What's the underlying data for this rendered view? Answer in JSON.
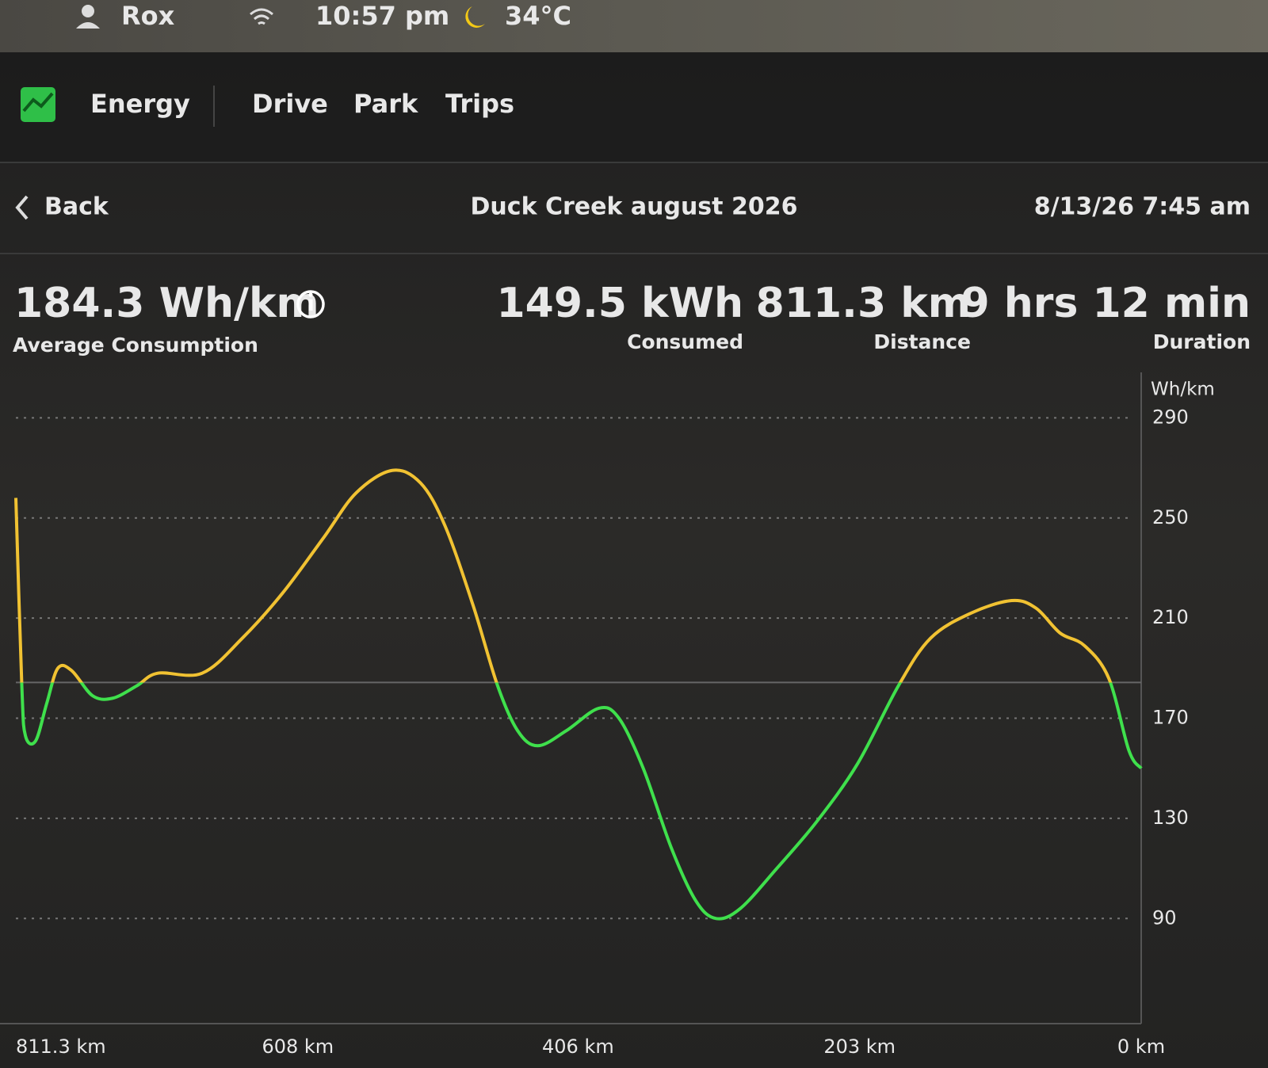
{
  "status_bar": {
    "user": "Rox",
    "time": "10:57 pm",
    "temperature": "34°C"
  },
  "nav": {
    "tabs": [
      "Energy",
      "Drive",
      "Park",
      "Trips"
    ]
  },
  "header": {
    "back": "Back",
    "title": "Duck Creek august 2026",
    "date": "8/13/26 7:45 am"
  },
  "stats": [
    {
      "value": "184.3 Wh/km",
      "label": "Average Consumption"
    },
    {
      "value": "149.5 kWh",
      "label": "Consumed"
    },
    {
      "value": "811.3 km",
      "label": "Distance"
    },
    {
      "value": "9 hrs 12 min",
      "label": "Duration"
    }
  ],
  "chart_data": {
    "type": "line",
    "y_unit": "Wh/km",
    "x": [
      811.3,
      807,
      804.4,
      797,
      789,
      781,
      771,
      756,
      741.5,
      724,
      709,
      677,
      648,
      619,
      589.6,
      566,
      540,
      519.6,
      502,
      481.6,
      464,
      449.5,
      435,
      414.5,
      391,
      376.5,
      359,
      338.6,
      321,
      306.5,
      289,
      262.7,
      233.5,
      204.3,
      175,
      151.8,
      122.6,
      93.4,
      75.9,
      58.4,
      40.9,
      23.4,
      8.8,
      0
    ],
    "series": [
      {
        "values": [
          258,
          183,
          163,
          161,
          176,
          190,
          189,
          179,
          178,
          183,
          188,
          188,
          202,
          220,
          242,
          260,
          269,
          264,
          247,
          215,
          183,
          165,
          159,
          165,
          174,
          170,
          150,
          118,
          97,
          90,
          94,
          110,
          129,
          152,
          183,
          202,
          212,
          217,
          214,
          204,
          199,
          186,
          157,
          150
        ]
      }
    ],
    "color_above": "#f1c232",
    "color_below": "#3fe04c",
    "reference_line": 184.3,
    "xlim": [
      811.3,
      0
    ],
    "ylim": [
      48,
      305
    ],
    "xticks": [
      {
        "value": 811.3,
        "label": "811.3 km"
      },
      {
        "value": 608,
        "label": "608 km"
      },
      {
        "value": 406,
        "label": "406 km"
      },
      {
        "value": 203,
        "label": "203 km"
      },
      {
        "value": 0,
        "label": "0 km"
      }
    ],
    "yticks": [
      90,
      130,
      170,
      210,
      250,
      290
    ],
    "grid": true
  }
}
